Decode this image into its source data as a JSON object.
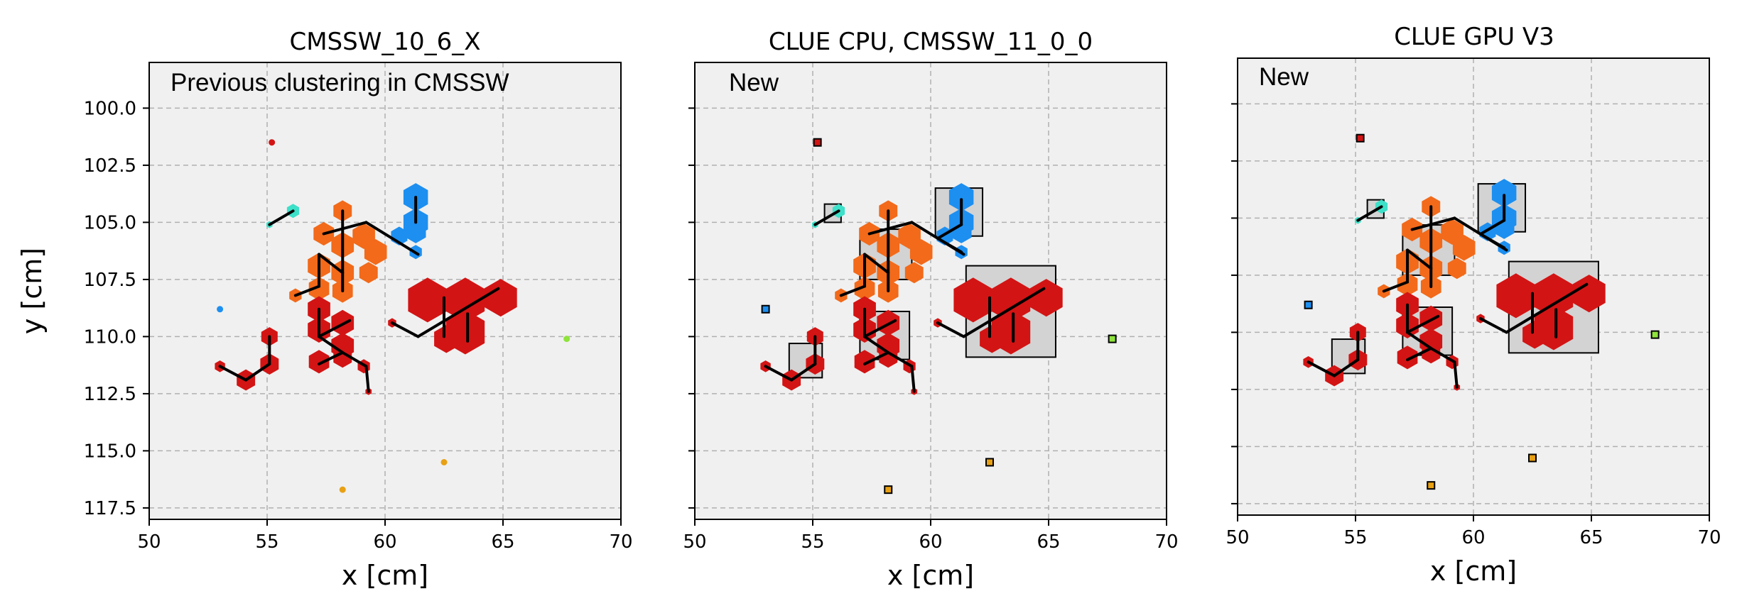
{
  "figure": {
    "panel_titles": [
      "CMSSW_10_6_X",
      "CLUE CPU, CMSSW_11_0_0",
      "CLUE GPU V3"
    ],
    "panel_notes": [
      "Previous clustering in CMSSW",
      "New",
      "New"
    ]
  },
  "chart_data": [
    {
      "type": "scatter",
      "title": "CMSSW_10_6_X",
      "annotation": "Previous clustering in CMSSW",
      "xlabel": "x [cm]",
      "ylabel": "y [cm]",
      "xlim": [
        50,
        70
      ],
      "ylim": [
        118,
        98
      ],
      "y_inverted": true,
      "grid": true,
      "x_ticks": [
        50,
        55,
        60,
        65,
        70
      ],
      "y_ticks": [
        100.0,
        102.5,
        105.0,
        107.5,
        110.0,
        112.5,
        115.0,
        117.5
      ],
      "show_y_tick_labels": true,
      "show_cluster_boxes": false,
      "show_seed_markers": false
    },
    {
      "type": "scatter",
      "title": "CLUE CPU, CMSSW_11_0_0",
      "annotation": "New",
      "xlabel": "x [cm]",
      "ylabel": "",
      "xlim": [
        50,
        70
      ],
      "ylim": [
        118,
        98
      ],
      "y_inverted": true,
      "grid": true,
      "x_ticks": [
        50,
        55,
        60,
        65,
        70
      ],
      "y_ticks": [
        100.0,
        102.5,
        105.0,
        107.5,
        110.0,
        112.5,
        115.0,
        117.5
      ],
      "show_y_tick_labels": false,
      "show_cluster_boxes": true,
      "show_seed_markers": true
    },
    {
      "type": "scatter",
      "title": "CLUE GPU V3",
      "annotation": "New",
      "xlabel": "x [cm]",
      "ylabel": "",
      "xlim": [
        50,
        70
      ],
      "ylim": [
        118,
        98
      ],
      "y_inverted": true,
      "grid": true,
      "x_ticks": [
        50,
        55,
        60,
        65,
        70
      ],
      "y_ticks": [
        100.0,
        102.5,
        105.0,
        107.5,
        110.0,
        112.5,
        115.0,
        117.5
      ],
      "show_y_tick_labels": false,
      "show_cluster_boxes": true,
      "show_seed_markers": true
    }
  ],
  "clusters": [
    {
      "name": "cyan",
      "color": "#3de0c8",
      "hexes": [
        [
          56.1,
          104.5,
          0.3
        ],
        [
          55.1,
          105.1,
          0.15
        ]
      ],
      "links": [
        [
          [
            55.1,
            105.1
          ],
          [
            56.1,
            104.5
          ]
        ]
      ],
      "box": [
        55.5,
        104.2,
        56.2,
        105.0
      ]
    },
    {
      "name": "blue",
      "color": "#1d8ff0",
      "hexes": [
        [
          61.3,
          103.9,
          0.6
        ],
        [
          61.3,
          105.0,
          0.6
        ],
        [
          60.6,
          105.6,
          0.4
        ],
        [
          61.3,
          105.4,
          0.5
        ],
        [
          61.3,
          106.3,
          0.3
        ]
      ],
      "links": [
        [
          [
            61.3,
            103.9
          ],
          [
            61.3,
            105.0
          ]
        ]
      ],
      "links_new": [
        [
          [
            61.3,
            104.0
          ],
          [
            61.3,
            105.1
          ]
        ],
        [
          [
            61.3,
            105.1
          ],
          [
            60.3,
            105.7
          ]
        ],
        [
          [
            60.3,
            105.7
          ],
          [
            61.3,
            106.3
          ]
        ]
      ],
      "box": [
        60.2,
        103.5,
        62.2,
        105.6
      ]
    },
    {
      "name": "orange",
      "color": "#f26a1a",
      "hexes": [
        [
          58.2,
          104.5,
          0.45
        ],
        [
          57.4,
          105.5,
          0.5
        ],
        [
          58.2,
          106.0,
          0.55
        ],
        [
          59.1,
          105.6,
          0.55
        ],
        [
          57.2,
          106.9,
          0.55
        ],
        [
          58.2,
          107.2,
          0.55
        ],
        [
          59.6,
          106.3,
          0.55
        ],
        [
          57.2,
          107.9,
          0.5
        ],
        [
          58.2,
          108.0,
          0.5
        ],
        [
          56.2,
          108.2,
          0.3
        ],
        [
          59.3,
          107.2,
          0.45
        ]
      ],
      "links": [
        [
          [
            58.2,
            104.5
          ],
          [
            58.2,
            108.0
          ]
        ],
        [
          [
            57.4,
            105.5
          ],
          [
            59.2,
            105.0
          ]
        ],
        [
          [
            59.2,
            105.0
          ],
          [
            61.4,
            106.4
          ]
        ],
        [
          [
            58.2,
            107.2
          ],
          [
            57.2,
            106.4
          ]
        ],
        [
          [
            57.2,
            106.4
          ],
          [
            57.2,
            107.8
          ]
        ],
        [
          [
            57.2,
            107.8
          ],
          [
            56.2,
            108.2
          ]
        ]
      ],
      "box": [
        57.0,
        105.3,
        59.2,
        107.5
      ]
    },
    {
      "name": "red-left",
      "color": "#d31414",
      "hexes": [
        [
          57.2,
          108.8,
          0.55
        ],
        [
          58.2,
          109.4,
          0.55
        ],
        [
          57.2,
          109.7,
          0.55
        ],
        [
          58.2,
          110.4,
          0.55
        ],
        [
          57.2,
          111.1,
          0.5
        ],
        [
          58.2,
          110.9,
          0.45
        ],
        [
          59.1,
          111.3,
          0.3
        ],
        [
          59.3,
          112.4,
          0.15
        ]
      ],
      "links": [
        [
          [
            57.2,
            108.8
          ],
          [
            57.2,
            110.0
          ]
        ],
        [
          [
            57.2,
            110.0
          ],
          [
            58.5,
            109.3
          ]
        ],
        [
          [
            57.2,
            110.0
          ],
          [
            58.2,
            110.7
          ]
        ],
        [
          [
            58.2,
            110.7
          ],
          [
            57.2,
            111.2
          ]
        ],
        [
          [
            58.2,
            110.7
          ],
          [
            59.2,
            111.3
          ]
        ],
        [
          [
            59.2,
            111.3
          ],
          [
            59.3,
            112.4
          ]
        ]
      ],
      "box": [
        57.0,
        108.9,
        59.1,
        111.0
      ]
    },
    {
      "name": "red-small",
      "color": "#d31414",
      "hexes": [
        [
          55.1,
          110.0,
          0.4
        ],
        [
          55.1,
          111.2,
          0.45
        ],
        [
          54.1,
          111.9,
          0.45
        ],
        [
          53.0,
          111.3,
          0.25
        ]
      ],
      "links": [
        [
          [
            55.1,
            110.0
          ],
          [
            55.1,
            111.2
          ]
        ],
        [
          [
            55.1,
            111.2
          ],
          [
            54.1,
            111.9
          ]
        ],
        [
          [
            54.1,
            111.9
          ],
          [
            53.0,
            111.3
          ]
        ]
      ],
      "box": [
        54.0,
        110.3,
        55.4,
        111.8
      ]
    },
    {
      "name": "red-big",
      "color": "#d31414",
      "hexes": [
        [
          61.8,
          108.4,
          0.95
        ],
        [
          63.4,
          108.4,
          0.95
        ],
        [
          64.9,
          108.3,
          0.8
        ],
        [
          63.4,
          109.8,
          0.95
        ],
        [
          62.6,
          110.1,
          0.6
        ],
        [
          60.3,
          109.4,
          0.2
        ]
      ],
      "links": [
        [
          [
            60.3,
            109.4
          ],
          [
            61.4,
            110.0
          ]
        ],
        [
          [
            61.4,
            110.0
          ],
          [
            64.8,
            107.9
          ]
        ],
        [
          [
            62.5,
            108.3
          ],
          [
            62.5,
            110.0
          ]
        ],
        [
          [
            63.5,
            109.0
          ],
          [
            63.5,
            110.2
          ]
        ]
      ],
      "box": [
        61.5,
        106.9,
        65.3,
        110.9
      ]
    }
  ],
  "isolated_points": [
    {
      "color": "#d31414",
      "x": 55.2,
      "y": 101.5
    },
    {
      "color": "#1d8ff0",
      "x": 53.0,
      "y": 108.8
    },
    {
      "color": "#8fe33c",
      "x": 67.7,
      "y": 110.1
    },
    {
      "color": "#e8a114",
      "x": 62.5,
      "y": 115.5
    },
    {
      "color": "#e8a114",
      "x": 58.2,
      "y": 116.7
    }
  ],
  "colors": {
    "panel_background": "#f0f0f0",
    "grid": "#b0b0b0",
    "link": "#000000",
    "box_fill": "#d3d3d3"
  }
}
